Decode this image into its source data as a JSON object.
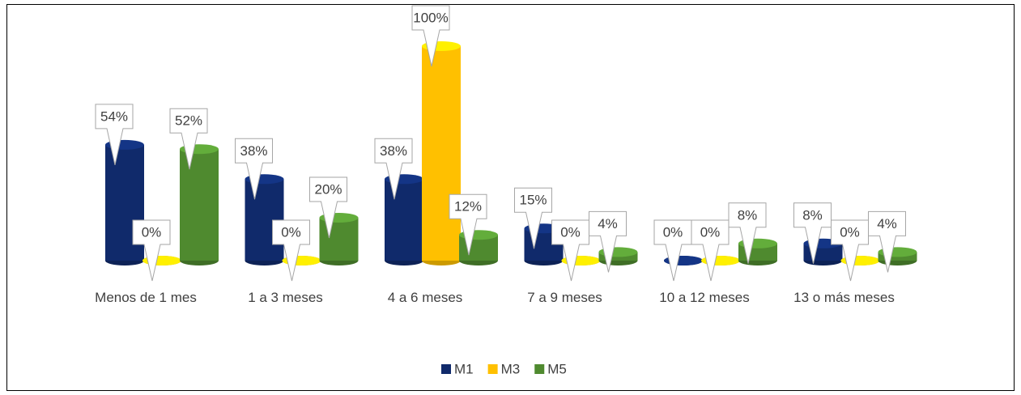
{
  "chart_data": {
    "type": "bar",
    "categories": [
      "Menos de 1 mes",
      "1 a 3 meses",
      "4 a 6 meses",
      "7 a 9 meses",
      "10 a 12 meses",
      "13 o más meses"
    ],
    "series": [
      {
        "name": "M1",
        "color": "#102a6b",
        "values": [
          54,
          38,
          38,
          15,
          0,
          8
        ],
        "value_labels": [
          "54%",
          "38%",
          "38%",
          "15%",
          "0%",
          "8%"
        ]
      },
      {
        "name": "M3",
        "color": "#ffc000",
        "values": [
          0,
          0,
          100,
          0,
          0,
          0
        ],
        "value_labels": [
          "0%",
          "0%",
          "100%",
          "0%",
          "0%",
          "0%"
        ]
      },
      {
        "name": "M5",
        "color": "#4f8a2f",
        "values": [
          52,
          20,
          12,
          4,
          8,
          4
        ],
        "value_labels": [
          "52%",
          "20%",
          "12%",
          "4%",
          "8%",
          "4%"
        ]
      }
    ],
    "legend": "bottom"
  }
}
